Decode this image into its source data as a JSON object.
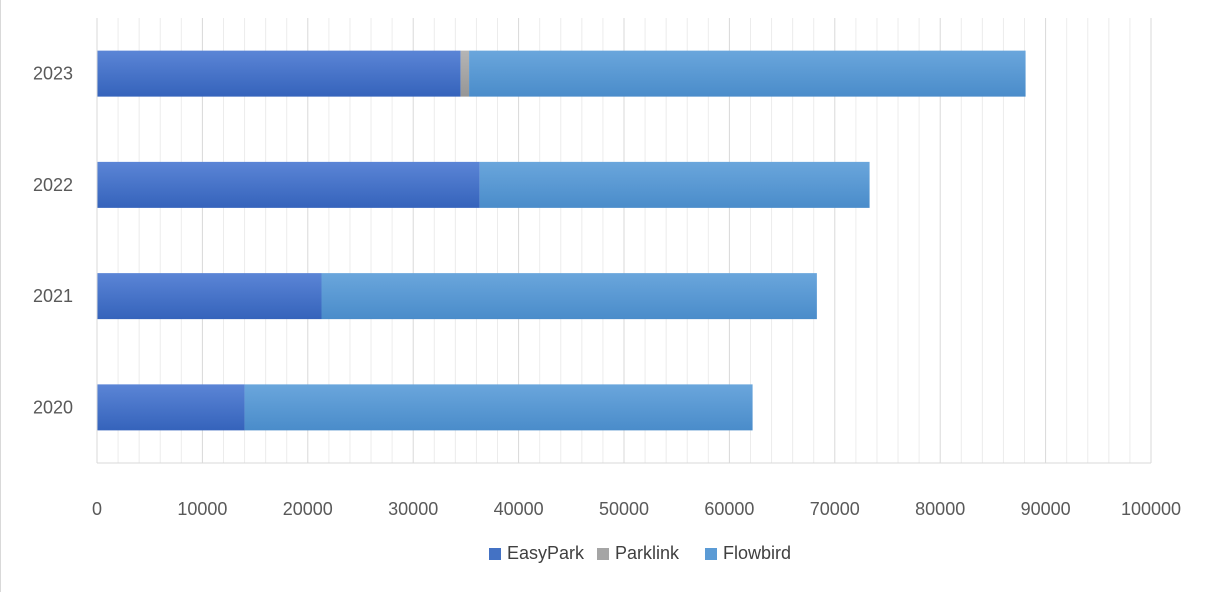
{
  "chart_data": {
    "type": "bar",
    "orientation": "horizontal",
    "stacked": true,
    "title": "",
    "xlabel": "",
    "ylabel": "",
    "categories": [
      "2020",
      "2021",
      "2022",
      "2023"
    ],
    "series": [
      {
        "name": "EasyPark",
        "color": "#4472c4",
        "values": [
          14000,
          21300,
          36300,
          34500
        ]
      },
      {
        "name": "Parklink",
        "color": "#a5a5a5",
        "values": [
          0,
          0,
          0,
          800
        ]
      },
      {
        "name": "Flowbird",
        "color": "#5b9bd5",
        "values": [
          48200,
          47000,
          37000,
          52800
        ]
      }
    ],
    "xlim": [
      0,
      100000
    ],
    "xticks": [
      0,
      10000,
      20000,
      30000,
      40000,
      50000,
      60000,
      70000,
      80000,
      90000,
      100000
    ],
    "xtick_labels": [
      "0",
      "10000",
      "20000",
      "30000",
      "40000",
      "50000",
      "60000",
      "70000",
      "80000",
      "90000",
      "100000"
    ],
    "grid": true,
    "minor_grid": true,
    "legend_position": "bottom"
  }
}
